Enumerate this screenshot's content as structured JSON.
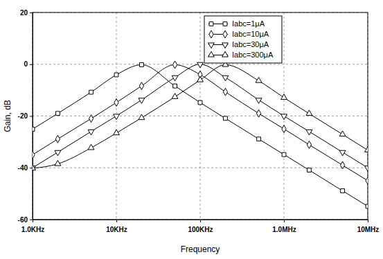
{
  "chart_data": {
    "type": "line",
    "x_label": "Frequency",
    "y_label": "Gain, dB",
    "log": "x",
    "grid": true,
    "legend": "upper right",
    "x": [
      1000,
      2000,
      5000,
      10000,
      20000,
      50000,
      100000,
      200000,
      500000,
      1000000,
      2000000,
      5000000,
      10000000
    ],
    "xlim": [
      1000,
      10000000
    ],
    "xticks": [
      {
        "value": 1000,
        "label": "1.0KHz"
      },
      {
        "value": 10000,
        "label": "10KHz"
      },
      {
        "value": 100000,
        "label": "100KHz"
      },
      {
        "value": 1000000,
        "label": "1.0MHz"
      },
      {
        "value": 10000000,
        "label": "10MHz"
      }
    ],
    "ylim": [
      -60,
      20
    ],
    "yticks": [
      -60,
      -40,
      -20,
      0,
      20
    ],
    "series": [
      {
        "name": "Iabc=1μA",
        "color": "#000000",
        "marker": "square",
        "values": [
          -25.1,
          -19.0,
          -10.8,
          -4.1,
          -0.2,
          -8.4,
          -14.8,
          -20.9,
          -28.9,
          -34.9,
          -40.9,
          -48.9,
          -54.9
        ]
      },
      {
        "name": "Iabc=10μA",
        "color": "#000000",
        "marker": "diamond",
        "values": [
          -35.0,
          -28.9,
          -21.0,
          -14.8,
          -8.4,
          -0.2,
          -4.0,
          -10.7,
          -19.0,
          -25.0,
          -31.1,
          -39.0,
          -45.0
        ]
      },
      {
        "name": "Iabc=30μA",
        "color": "#000000",
        "marker": "triangle-down",
        "values": [
          -40.0,
          -34.0,
          -26.0,
          -20.0,
          -13.8,
          -5.1,
          0,
          -5.1,
          -13.8,
          -20.0,
          -26.0,
          -34.0,
          -40.0
        ]
      },
      {
        "name": "Iabc=300μA",
        "color": "#000000",
        "marker": "triangle-up",
        "values": [
          -40.2,
          -38.5,
          -32.3,
          -26.6,
          -20.7,
          -12.6,
          -6.1,
          -0.2,
          -6.4,
          -12.9,
          -19.1,
          -27.1,
          -33.2
        ]
      }
    ]
  }
}
